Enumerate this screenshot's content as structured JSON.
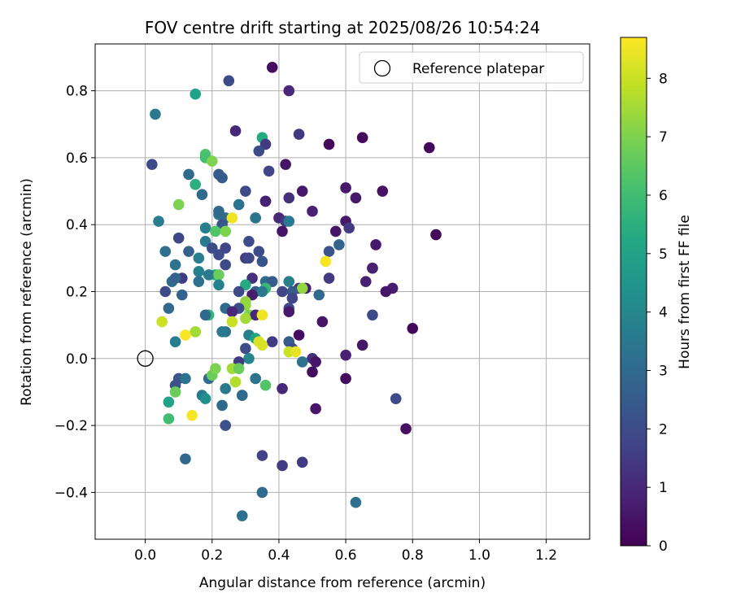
{
  "chart_data": {
    "type": "scatter",
    "title": "FOV centre drift starting at 2025/08/26 10:54:24",
    "xlabel": "Angular distance from reference (arcmin)",
    "ylabel": "Rotation from reference (arcmin)",
    "xlim": [
      -0.15,
      1.33
    ],
    "ylim": [
      -0.54,
      0.94
    ],
    "xticks": [
      "0.0",
      "0.2",
      "0.4",
      "0.6",
      "0.8",
      "1.0",
      "1.2"
    ],
    "xtick_values": [
      0.0,
      0.2,
      0.4,
      0.6,
      0.8,
      1.0,
      1.2
    ],
    "yticks": [
      "−0.4",
      "−0.2",
      "0.0",
      "0.2",
      "0.4",
      "0.6",
      "0.8"
    ],
    "ytick_values": [
      -0.4,
      -0.2,
      0.0,
      0.2,
      0.4,
      0.6,
      0.8
    ],
    "grid": true,
    "legend": {
      "position": "upper right",
      "entries": [
        "Reference platepar"
      ]
    },
    "reference_point": {
      "x": 0.0,
      "y": 0.0,
      "marker": "open circle"
    },
    "colorbar": {
      "label": "Hours from first FF file",
      "colormap": "viridis",
      "range": [
        0,
        8.7
      ],
      "ticks": [
        "0",
        "1",
        "2",
        "3",
        "4",
        "5",
        "6",
        "7",
        "8"
      ],
      "tick_values": [
        0,
        1,
        2,
        3,
        4,
        5,
        6,
        7,
        8
      ]
    },
    "points": [
      [
        0.38,
        0.87,
        0.3
      ],
      [
        0.25,
        0.83,
        2.0
      ],
      [
        0.43,
        0.8,
        1.0
      ],
      [
        0.15,
        0.79,
        5.0
      ],
      [
        0.03,
        0.73,
        3.5
      ],
      [
        0.27,
        0.68,
        1.0
      ],
      [
        0.46,
        0.67,
        1.5
      ],
      [
        0.35,
        0.66,
        5.3
      ],
      [
        0.65,
        0.66,
        0.2
      ],
      [
        0.55,
        0.64,
        0.2
      ],
      [
        0.85,
        0.63,
        0.2
      ],
      [
        0.36,
        0.64,
        1.5
      ],
      [
        0.34,
        0.62,
        2.0
      ],
      [
        0.18,
        0.61,
        6.3
      ],
      [
        0.18,
        0.6,
        6.1
      ],
      [
        0.2,
        0.59,
        7.0
      ],
      [
        0.02,
        0.58,
        2.0
      ],
      [
        0.42,
        0.58,
        0.5
      ],
      [
        0.37,
        0.56,
        1.8
      ],
      [
        0.13,
        0.55,
        3.0
      ],
      [
        0.22,
        0.55,
        2.5
      ],
      [
        0.23,
        0.54,
        2.5
      ],
      [
        0.15,
        0.52,
        5.5
      ],
      [
        0.6,
        0.51,
        0.6
      ],
      [
        0.71,
        0.5,
        0.4
      ],
      [
        0.47,
        0.5,
        0.6
      ],
      [
        0.3,
        0.5,
        2.0
      ],
      [
        0.17,
        0.49,
        3.0
      ],
      [
        0.43,
        0.48,
        1.2
      ],
      [
        0.63,
        0.48,
        0.6
      ],
      [
        0.36,
        0.47,
        0.8
      ],
      [
        0.36,
        0.47,
        0.8
      ],
      [
        0.1,
        0.46,
        7.0
      ],
      [
        0.28,
        0.46,
        3.3
      ],
      [
        0.5,
        0.44,
        0.8
      ],
      [
        0.22,
        0.43,
        3.2
      ],
      [
        0.22,
        0.44,
        3.0
      ],
      [
        0.24,
        0.42,
        3.0
      ],
      [
        0.33,
        0.42,
        3.3
      ],
      [
        0.26,
        0.42,
        8.5
      ],
      [
        0.4,
        0.42,
        1.0
      ],
      [
        0.42,
        0.41,
        1.5
      ],
      [
        0.43,
        0.41,
        3.5
      ],
      [
        0.6,
        0.41,
        0.6
      ],
      [
        0.04,
        0.41,
        3.7
      ],
      [
        0.23,
        0.4,
        2.3
      ],
      [
        0.61,
        0.39,
        1.5
      ],
      [
        0.18,
        0.39,
        3.7
      ],
      [
        0.21,
        0.38,
        6.3
      ],
      [
        0.24,
        0.38,
        7.0
      ],
      [
        0.41,
        0.38,
        0.5
      ],
      [
        0.57,
        0.38,
        0.5
      ],
      [
        0.87,
        0.37,
        0.2
      ],
      [
        0.1,
        0.36,
        1.8
      ],
      [
        0.18,
        0.35,
        3.5
      ],
      [
        0.31,
        0.35,
        2.0
      ],
      [
        0.58,
        0.34,
        2.8
      ],
      [
        0.69,
        0.34,
        0.6
      ],
      [
        0.2,
        0.33,
        2.0
      ],
      [
        0.24,
        0.33,
        1.8
      ],
      [
        0.06,
        0.32,
        3.2
      ],
      [
        0.13,
        0.32,
        2.7
      ],
      [
        0.34,
        0.32,
        2.0
      ],
      [
        0.55,
        0.32,
        2.3
      ],
      [
        0.22,
        0.31,
        2.0
      ],
      [
        0.3,
        0.3,
        1.5
      ],
      [
        0.16,
        0.3,
        3.7
      ],
      [
        0.31,
        0.3,
        1.8
      ],
      [
        0.35,
        0.29,
        2.3
      ],
      [
        0.54,
        0.29,
        8.6
      ],
      [
        0.09,
        0.28,
        3.3
      ],
      [
        0.24,
        0.28,
        2.0
      ],
      [
        0.68,
        0.27,
        0.8
      ],
      [
        0.68,
        0.27,
        0.8
      ],
      [
        0.16,
        0.26,
        3.8
      ],
      [
        0.21,
        0.25,
        5.3
      ],
      [
        0.19,
        0.25,
        3.5
      ],
      [
        0.22,
        0.25,
        6.7
      ],
      [
        0.32,
        0.24,
        1.2
      ],
      [
        0.11,
        0.24,
        1.5
      ],
      [
        0.55,
        0.24,
        1.5
      ],
      [
        0.66,
        0.23,
        0.8
      ],
      [
        0.08,
        0.23,
        3.0
      ],
      [
        0.09,
        0.24,
        2.7
      ],
      [
        0.16,
        0.23,
        3.2
      ],
      [
        0.36,
        0.23,
        3.0
      ],
      [
        0.38,
        0.23,
        2.5
      ],
      [
        0.43,
        0.23,
        3.7
      ],
      [
        0.22,
        0.22,
        3.8
      ],
      [
        0.3,
        0.22,
        5.3
      ],
      [
        0.36,
        0.21,
        5.8
      ],
      [
        0.48,
        0.21,
        0.7
      ],
      [
        0.46,
        0.21,
        1.5
      ],
      [
        0.47,
        0.21,
        7.3
      ],
      [
        0.74,
        0.21,
        0.7
      ],
      [
        0.06,
        0.2,
        2.0
      ],
      [
        0.28,
        0.2,
        2.0
      ],
      [
        0.33,
        0.2,
        2.5
      ],
      [
        0.35,
        0.2,
        3.5
      ],
      [
        0.41,
        0.2,
        1.8
      ],
      [
        0.44,
        0.2,
        2.5
      ],
      [
        0.72,
        0.2,
        0.5
      ],
      [
        0.52,
        0.19,
        3.0
      ],
      [
        0.11,
        0.19,
        2.8
      ],
      [
        0.32,
        0.19,
        0.7
      ],
      [
        0.44,
        0.18,
        1.8
      ],
      [
        0.3,
        0.17,
        7.3
      ],
      [
        0.3,
        0.16,
        7.3
      ],
      [
        0.28,
        0.15,
        2.0
      ],
      [
        0.43,
        0.15,
        2.0
      ],
      [
        0.07,
        0.15,
        3.0
      ],
      [
        0.24,
        0.15,
        3.0
      ],
      [
        0.19,
        0.13,
        5.7
      ],
      [
        0.26,
        0.14,
        1.0
      ],
      [
        0.31,
        0.13,
        7.0
      ],
      [
        0.18,
        0.13,
        3.0
      ],
      [
        0.43,
        0.14,
        0.6
      ],
      [
        0.33,
        0.13,
        1.0
      ],
      [
        0.3,
        0.12,
        7.5
      ],
      [
        0.35,
        0.13,
        8.5
      ],
      [
        0.05,
        0.11,
        8.0
      ],
      [
        0.26,
        0.11,
        8.0
      ],
      [
        0.53,
        0.11,
        0.5
      ],
      [
        0.68,
        0.13,
        2.0
      ],
      [
        0.8,
        0.09,
        0.2
      ],
      [
        0.15,
        0.08,
        7.0
      ],
      [
        0.15,
        0.08,
        7.5
      ],
      [
        0.12,
        0.07,
        8.6
      ],
      [
        0.24,
        0.08,
        3.2
      ],
      [
        0.23,
        0.08,
        3.5
      ],
      [
        0.46,
        0.07,
        0.3
      ],
      [
        0.31,
        0.07,
        3.8
      ],
      [
        0.33,
        0.06,
        5.0
      ],
      [
        0.34,
        0.05,
        8.2
      ],
      [
        0.38,
        0.05,
        1.5
      ],
      [
        0.43,
        0.05,
        2.5
      ],
      [
        0.09,
        0.05,
        3.7
      ],
      [
        0.44,
        0.03,
        2.0
      ],
      [
        0.35,
        0.04,
        8.2
      ],
      [
        0.3,
        0.03,
        2.0
      ],
      [
        0.65,
        0.04,
        0.5
      ],
      [
        0.43,
        0.02,
        8.0
      ],
      [
        0.45,
        0.02,
        8.4
      ],
      [
        0.6,
        0.01,
        0.8
      ],
      [
        0.31,
        0.0,
        4.0
      ],
      [
        0.5,
        0.0,
        1.2
      ],
      [
        0.51,
        -0.01,
        0.5
      ],
      [
        0.47,
        -0.01,
        3.3
      ],
      [
        0.28,
        -0.01,
        1.5
      ],
      [
        0.26,
        -0.03,
        7.5
      ],
      [
        0.28,
        -0.03,
        6.7
      ],
      [
        0.5,
        -0.04,
        0.3
      ],
      [
        0.1,
        -0.06,
        2.3
      ],
      [
        0.12,
        -0.06,
        3.3
      ],
      [
        0.19,
        -0.06,
        3.0
      ],
      [
        0.2,
        -0.05,
        6.7
      ],
      [
        0.21,
        -0.03,
        7.0
      ],
      [
        0.27,
        -0.07,
        7.7
      ],
      [
        0.33,
        -0.06,
        3.3
      ],
      [
        0.36,
        -0.08,
        6.3
      ],
      [
        0.41,
        -0.09,
        1.0
      ],
      [
        0.6,
        -0.06,
        0.3
      ],
      [
        0.24,
        -0.09,
        3.5
      ],
      [
        0.09,
        -0.08,
        2.2
      ],
      [
        0.09,
        -0.1,
        6.7
      ],
      [
        0.07,
        -0.13,
        5.0
      ],
      [
        0.17,
        -0.11,
        3.5
      ],
      [
        0.18,
        -0.12,
        4.3
      ],
      [
        0.29,
        -0.11,
        3.0
      ],
      [
        0.29,
        -0.11,
        3.0
      ],
      [
        0.75,
        -0.12,
        2.0
      ],
      [
        0.23,
        -0.14,
        3.0
      ],
      [
        0.51,
        -0.15,
        0.5
      ],
      [
        0.14,
        -0.17,
        8.6
      ],
      [
        0.07,
        -0.18,
        6.0
      ],
      [
        0.24,
        -0.2,
        2.2
      ],
      [
        0.78,
        -0.21,
        0.4
      ],
      [
        0.35,
        -0.29,
        1.7
      ],
      [
        0.12,
        -0.3,
        3.0
      ],
      [
        0.41,
        -0.32,
        1.5
      ],
      [
        0.47,
        -0.31,
        1.5
      ],
      [
        0.35,
        -0.4,
        3.0
      ],
      [
        0.63,
        -0.43,
        3.2
      ],
      [
        0.29,
        -0.47,
        3.2
      ]
    ]
  }
}
